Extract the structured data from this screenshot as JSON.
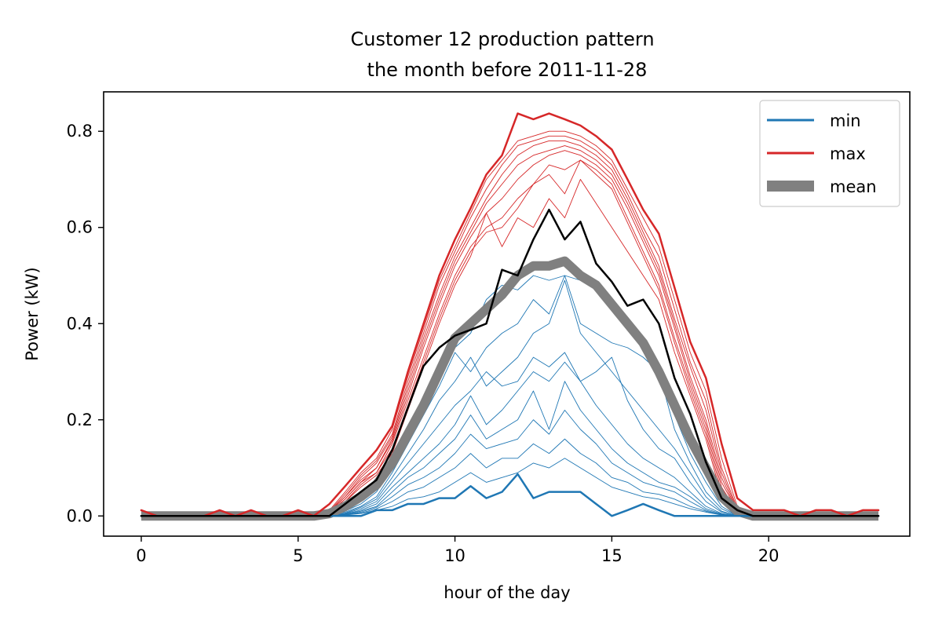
{
  "chart_data": {
    "type": "line",
    "title_line1": "Customer 12 production pattern",
    "title_line2": "the month before 2011-11-28",
    "xlabel": "hour of the day",
    "ylabel": "Power (kW)",
    "xlim": [
      -1.2,
      24.5
    ],
    "ylim": [
      -0.042,
      0.882
    ],
    "xticks": [
      0,
      5,
      10,
      15,
      20
    ],
    "xtick_labels": [
      "0",
      "5",
      "10",
      "15",
      "20"
    ],
    "yticks": [
      0.0,
      0.2,
      0.4,
      0.6,
      0.8
    ],
    "ytick_labels": [
      "0.0",
      "0.2",
      "0.4",
      "0.6",
      "0.8"
    ],
    "grid": false,
    "legend_position": "top-right",
    "legend": [
      {
        "label": "min",
        "color": "#1f77b4",
        "style": "line"
      },
      {
        "label": "max",
        "color": "#d62728",
        "style": "line"
      },
      {
        "label": "mean",
        "color": "#808080",
        "style": "thick"
      }
    ],
    "colors": {
      "min": "#1f77b4",
      "max": "#d62728",
      "mean": "#808080",
      "current": "#000000"
    },
    "x": [
      0,
      0.5,
      1,
      1.5,
      2,
      2.5,
      3,
      3.5,
      4,
      4.5,
      5,
      5.5,
      6,
      6.5,
      7,
      7.5,
      8,
      8.5,
      9,
      9.5,
      10,
      10.5,
      11,
      11.5,
      12,
      12.5,
      13,
      13.5,
      14,
      14.5,
      15,
      15.5,
      16,
      16.5,
      17,
      17.5,
      18,
      18.5,
      19,
      19.5,
      20,
      20.5,
      21,
      21.5,
      22,
      22.5,
      23,
      23.5
    ],
    "series": [
      {
        "name": "min",
        "role": "min",
        "color": "#1f77b4",
        "width": 2.5,
        "values": [
          0,
          0,
          0,
          0,
          0,
          0,
          0,
          0,
          0,
          0,
          0,
          0,
          0,
          0,
          0,
          0.012,
          0.012,
          0.025,
          0.025,
          0.037,
          0.037,
          0.062,
          0.037,
          0.05,
          0.087,
          0.037,
          0.05,
          0.05,
          0.05,
          0.025,
          0,
          0.012,
          0.025,
          0.012,
          0,
          0,
          0,
          0,
          0,
          0,
          0,
          0,
          0,
          0,
          0,
          0,
          0,
          0
        ]
      },
      {
        "name": "max",
        "role": "max",
        "color": "#d62728",
        "width": 2.5,
        "values": [
          0.012,
          0,
          0,
          0,
          0,
          0.012,
          0,
          0.012,
          0,
          0,
          0.012,
          0,
          0.025,
          0.062,
          0.1,
          0.137,
          0.187,
          0.3,
          0.4,
          0.5,
          0.575,
          0.64,
          0.71,
          0.75,
          0.837,
          0.825,
          0.837,
          0.825,
          0.812,
          0.79,
          0.762,
          0.7,
          0.637,
          0.587,
          0.475,
          0.362,
          0.287,
          0.15,
          0.037,
          0.012,
          0.012,
          0.012,
          0,
          0.012,
          0.012,
          0,
          0.012,
          0.012
        ]
      },
      {
        "name": "mean",
        "role": "mean",
        "color": "#808080",
        "width": 12,
        "values": [
          0,
          0,
          0,
          0,
          0,
          0,
          0,
          0,
          0,
          0,
          0,
          0,
          0.005,
          0.02,
          0.04,
          0.065,
          0.11,
          0.17,
          0.23,
          0.3,
          0.37,
          0.4,
          0.43,
          0.46,
          0.5,
          0.52,
          0.52,
          0.53,
          0.5,
          0.48,
          0.44,
          0.4,
          0.36,
          0.3,
          0.23,
          0.16,
          0.1,
          0.04,
          0.01,
          0,
          0,
          0,
          0,
          0,
          0,
          0,
          0,
          0
        ]
      },
      {
        "name": "2011-11-28",
        "role": "current",
        "color": "#000000",
        "width": 2.5,
        "values": [
          0,
          0,
          0,
          0,
          0,
          0,
          0,
          0,
          0,
          0,
          0,
          0,
          0,
          0.025,
          0.05,
          0.075,
          0.137,
          0.225,
          0.312,
          0.35,
          0.375,
          0.387,
          0.4,
          0.512,
          0.5,
          0.575,
          0.637,
          0.575,
          0.612,
          0.525,
          0.487,
          0.437,
          0.45,
          0.4,
          0.287,
          0.212,
          0.112,
          0.037,
          0.012,
          0,
          0,
          0,
          0,
          0,
          0,
          0,
          0,
          0
        ]
      },
      {
        "role": "day-high",
        "color": "#d62728",
        "width": 0.9,
        "values": [
          0,
          0,
          0,
          0,
          0,
          0,
          0,
          0,
          0,
          0,
          0,
          0,
          0.012,
          0.05,
          0.09,
          0.12,
          0.18,
          0.29,
          0.39,
          0.49,
          0.56,
          0.63,
          0.7,
          0.74,
          0.78,
          0.79,
          0.8,
          0.8,
          0.79,
          0.77,
          0.74,
          0.68,
          0.62,
          0.56,
          0.45,
          0.34,
          0.26,
          0.12,
          0.02,
          0,
          0,
          0,
          0,
          0,
          0,
          0,
          0,
          0
        ]
      },
      {
        "role": "day-high",
        "color": "#d62728",
        "width": 0.9,
        "values": [
          0,
          0,
          0,
          0,
          0,
          0,
          0,
          0,
          0,
          0,
          0,
          0,
          0.01,
          0.045,
          0.085,
          0.115,
          0.17,
          0.28,
          0.38,
          0.48,
          0.55,
          0.62,
          0.68,
          0.73,
          0.77,
          0.78,
          0.79,
          0.79,
          0.78,
          0.76,
          0.73,
          0.67,
          0.6,
          0.54,
          0.43,
          0.32,
          0.24,
          0.1,
          0.015,
          0,
          0,
          0,
          0,
          0,
          0,
          0,
          0,
          0
        ]
      },
      {
        "role": "day-high",
        "color": "#d62728",
        "width": 0.9,
        "values": [
          0,
          0,
          0,
          0,
          0,
          0,
          0,
          0,
          0,
          0,
          0,
          0,
          0.01,
          0.04,
          0.08,
          0.11,
          0.165,
          0.27,
          0.37,
          0.46,
          0.54,
          0.6,
          0.66,
          0.71,
          0.75,
          0.77,
          0.78,
          0.78,
          0.77,
          0.75,
          0.72,
          0.66,
          0.59,
          0.52,
          0.41,
          0.31,
          0.22,
          0.09,
          0.012,
          0,
          0,
          0,
          0,
          0,
          0,
          0,
          0,
          0
        ]
      },
      {
        "role": "day-high",
        "color": "#d62728",
        "width": 0.9,
        "values": [
          0,
          0,
          0,
          0,
          0,
          0,
          0,
          0,
          0,
          0,
          0,
          0,
          0.008,
          0.04,
          0.075,
          0.1,
          0.16,
          0.26,
          0.36,
          0.45,
          0.53,
          0.59,
          0.65,
          0.69,
          0.73,
          0.75,
          0.76,
          0.77,
          0.76,
          0.74,
          0.71,
          0.65,
          0.58,
          0.51,
          0.4,
          0.29,
          0.2,
          0.08,
          0.01,
          0,
          0,
          0,
          0,
          0,
          0,
          0,
          0,
          0
        ]
      },
      {
        "role": "day-high",
        "color": "#d62728",
        "width": 0.9,
        "values": [
          0,
          0,
          0,
          0,
          0,
          0,
          0,
          0,
          0,
          0,
          0,
          0,
          0.008,
          0.035,
          0.07,
          0.1,
          0.155,
          0.25,
          0.35,
          0.44,
          0.52,
          0.58,
          0.63,
          0.66,
          0.7,
          0.73,
          0.75,
          0.76,
          0.75,
          0.73,
          0.7,
          0.64,
          0.57,
          0.5,
          0.39,
          0.28,
          0.19,
          0.07,
          0.01,
          0,
          0,
          0,
          0,
          0,
          0,
          0,
          0,
          0
        ]
      },
      {
        "role": "day-high",
        "color": "#d62728",
        "width": 0.9,
        "values": [
          0,
          0,
          0,
          0,
          0,
          0,
          0,
          0,
          0,
          0,
          0,
          0,
          0.005,
          0.035,
          0.07,
          0.09,
          0.15,
          0.24,
          0.33,
          0.42,
          0.5,
          0.56,
          0.6,
          0.62,
          0.66,
          0.69,
          0.73,
          0.72,
          0.74,
          0.72,
          0.69,
          0.62,
          0.55,
          0.48,
          0.37,
          0.27,
          0.18,
          0.06,
          0.008,
          0,
          0,
          0,
          0,
          0,
          0,
          0,
          0,
          0
        ]
      },
      {
        "role": "day-high",
        "color": "#d62728",
        "width": 0.9,
        "values": [
          0,
          0,
          0,
          0,
          0,
          0,
          0,
          0,
          0,
          0,
          0,
          0,
          0.005,
          0.03,
          0.065,
          0.09,
          0.14,
          0.23,
          0.32,
          0.41,
          0.49,
          0.55,
          0.59,
          0.6,
          0.64,
          0.69,
          0.71,
          0.67,
          0.74,
          0.71,
          0.68,
          0.61,
          0.54,
          0.47,
          0.36,
          0.26,
          0.17,
          0.05,
          0.005,
          0,
          0,
          0,
          0,
          0,
          0,
          0,
          0,
          0
        ]
      },
      {
        "role": "day-high",
        "color": "#d62728",
        "width": 0.9,
        "values": [
          0,
          0,
          0,
          0,
          0,
          0,
          0,
          0,
          0,
          0,
          0,
          0,
          0.005,
          0.03,
          0.06,
          0.085,
          0.13,
          0.22,
          0.31,
          0.4,
          0.48,
          0.54,
          0.63,
          0.56,
          0.62,
          0.6,
          0.66,
          0.62,
          0.7,
          0.65,
          0.6,
          0.55,
          0.5,
          0.45,
          0.34,
          0.25,
          0.16,
          0.04,
          0.005,
          0,
          0,
          0,
          0,
          0,
          0,
          0,
          0,
          0
        ]
      },
      {
        "role": "day-low",
        "color": "#1f77b4",
        "width": 0.9,
        "values": [
          0,
          0,
          0,
          0,
          0,
          0,
          0,
          0,
          0,
          0,
          0,
          0,
          0,
          0.01,
          0.025,
          0.05,
          0.1,
          0.17,
          0.24,
          0.3,
          0.35,
          0.38,
          0.45,
          0.48,
          0.47,
          0.5,
          0.49,
          0.5,
          0.49,
          0.47,
          0.44,
          0.41,
          0.35,
          0.3,
          0.21,
          0.13,
          0.07,
          0.02,
          0,
          0,
          0,
          0,
          0,
          0,
          0,
          0,
          0,
          0
        ]
      },
      {
        "role": "day-low",
        "color": "#1f77b4",
        "width": 0.9,
        "values": [
          0,
          0,
          0,
          0,
          0,
          0,
          0,
          0,
          0,
          0,
          0,
          0,
          0,
          0.008,
          0.02,
          0.04,
          0.09,
          0.15,
          0.21,
          0.27,
          0.34,
          0.3,
          0.35,
          0.38,
          0.4,
          0.45,
          0.42,
          0.5,
          0.4,
          0.38,
          0.36,
          0.35,
          0.33,
          0.3,
          0.18,
          0.11,
          0.05,
          0.015,
          0,
          0,
          0,
          0,
          0,
          0,
          0,
          0,
          0,
          0
        ]
      },
      {
        "role": "day-low",
        "color": "#1f77b4",
        "width": 0.9,
        "values": [
          0,
          0,
          0,
          0,
          0,
          0,
          0,
          0,
          0,
          0,
          0,
          0,
          0,
          0.006,
          0.018,
          0.035,
          0.08,
          0.13,
          0.18,
          0.24,
          0.28,
          0.33,
          0.27,
          0.3,
          0.33,
          0.38,
          0.4,
          0.49,
          0.38,
          0.34,
          0.3,
          0.26,
          0.22,
          0.18,
          0.14,
          0.09,
          0.04,
          0.01,
          0,
          0,
          0,
          0,
          0,
          0,
          0,
          0,
          0,
          0
        ]
      },
      {
        "role": "day-low",
        "color": "#1f77b4",
        "width": 0.9,
        "values": [
          0,
          0,
          0,
          0,
          0,
          0,
          0,
          0,
          0,
          0,
          0,
          0,
          0,
          0.005,
          0.015,
          0.03,
          0.07,
          0.11,
          0.15,
          0.19,
          0.23,
          0.26,
          0.3,
          0.27,
          0.28,
          0.33,
          0.31,
          0.34,
          0.28,
          0.3,
          0.33,
          0.24,
          0.18,
          0.14,
          0.12,
          0.07,
          0.03,
          0.008,
          0,
          0,
          0,
          0,
          0,
          0,
          0,
          0,
          0,
          0
        ]
      },
      {
        "role": "day-low",
        "color": "#1f77b4",
        "width": 0.9,
        "values": [
          0,
          0,
          0,
          0,
          0,
          0,
          0,
          0,
          0,
          0,
          0,
          0,
          0,
          0.004,
          0.012,
          0.025,
          0.06,
          0.09,
          0.12,
          0.15,
          0.19,
          0.25,
          0.19,
          0.22,
          0.26,
          0.3,
          0.28,
          0.32,
          0.28,
          0.23,
          0.19,
          0.15,
          0.12,
          0.1,
          0.08,
          0.05,
          0.02,
          0.005,
          0,
          0,
          0,
          0,
          0,
          0,
          0,
          0,
          0,
          0
        ]
      },
      {
        "role": "day-low",
        "color": "#1f77b4",
        "width": 0.9,
        "values": [
          0,
          0,
          0,
          0,
          0,
          0,
          0,
          0,
          0,
          0,
          0,
          0,
          0,
          0.004,
          0.01,
          0.02,
          0.05,
          0.08,
          0.1,
          0.13,
          0.16,
          0.21,
          0.16,
          0.18,
          0.2,
          0.26,
          0.18,
          0.28,
          0.22,
          0.18,
          0.14,
          0.11,
          0.09,
          0.07,
          0.06,
          0.04,
          0.015,
          0.004,
          0,
          0,
          0,
          0,
          0,
          0,
          0,
          0,
          0,
          0
        ]
      },
      {
        "role": "day-low",
        "color": "#1f77b4",
        "width": 0.9,
        "values": [
          0,
          0,
          0,
          0,
          0,
          0,
          0,
          0,
          0,
          0,
          0,
          0,
          0,
          0.003,
          0.008,
          0.018,
          0.04,
          0.065,
          0.08,
          0.1,
          0.13,
          0.17,
          0.14,
          0.15,
          0.16,
          0.2,
          0.17,
          0.22,
          0.18,
          0.15,
          0.11,
          0.09,
          0.07,
          0.06,
          0.05,
          0.03,
          0.012,
          0.003,
          0,
          0,
          0,
          0,
          0,
          0,
          0,
          0,
          0,
          0
        ]
      },
      {
        "role": "day-low",
        "color": "#1f77b4",
        "width": 0.9,
        "values": [
          0,
          0,
          0,
          0,
          0,
          0,
          0,
          0,
          0,
          0,
          0,
          0,
          0,
          0.003,
          0.006,
          0.015,
          0.03,
          0.05,
          0.06,
          0.08,
          0.1,
          0.13,
          0.1,
          0.12,
          0.12,
          0.15,
          0.13,
          0.16,
          0.13,
          0.11,
          0.08,
          0.07,
          0.05,
          0.045,
          0.035,
          0.02,
          0.01,
          0.002,
          0,
          0,
          0,
          0,
          0,
          0,
          0,
          0,
          0,
          0
        ]
      },
      {
        "role": "day-low",
        "color": "#1f77b4",
        "width": 0.9,
        "values": [
          0,
          0,
          0,
          0,
          0,
          0,
          0,
          0,
          0,
          0,
          0,
          0,
          0,
          0.002,
          0.005,
          0.012,
          0.02,
          0.035,
          0.04,
          0.05,
          0.07,
          0.09,
          0.07,
          0.08,
          0.09,
          0.11,
          0.1,
          0.12,
          0.1,
          0.08,
          0.06,
          0.05,
          0.04,
          0.035,
          0.025,
          0.015,
          0.008,
          0.002,
          0,
          0,
          0,
          0,
          0,
          0,
          0,
          0,
          0,
          0
        ]
      }
    ]
  }
}
